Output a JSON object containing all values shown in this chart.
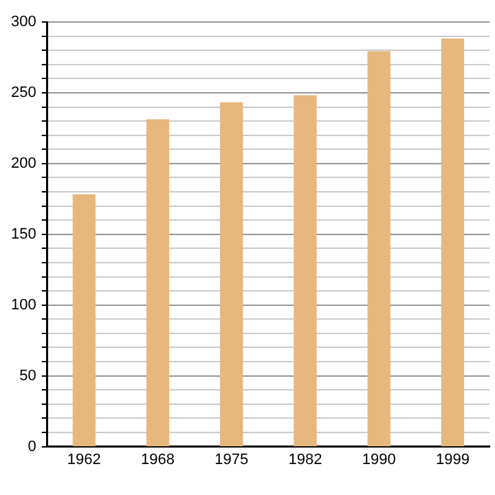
{
  "chart_data": {
    "type": "bar",
    "categories": [
      "1962",
      "1968",
      "1975",
      "1982",
      "1990",
      "1999"
    ],
    "values": [
      178,
      231,
      243,
      248,
      279,
      288
    ],
    "color": "#e6b87e",
    "ylim": [
      0,
      300
    ],
    "yticks": [
      0,
      {
        "value": 10,
        "label": null
      },
      {
        "value": 20,
        "label": null
      },
      {
        "value": 30,
        "label": null
      },
      {
        "value": 40,
        "label": null
      },
      50,
      {
        "value": 60,
        "label": null
      },
      {
        "value": 70,
        "label": null
      },
      {
        "value": 80,
        "label": null
      },
      {
        "value": 90,
        "label": null
      },
      100,
      {
        "value": 110,
        "label": null
      },
      {
        "value": 120,
        "label": null
      },
      {
        "value": 130,
        "label": null
      },
      {
        "value": 140,
        "label": null
      },
      150,
      {
        "value": 160,
        "label": null
      },
      {
        "value": 170,
        "label": null
      },
      {
        "value": 180,
        "label": null
      },
      {
        "value": 190,
        "label": null
      },
      200,
      {
        "value": 210,
        "label": null
      },
      {
        "value": 220,
        "label": null
      },
      {
        "value": 230,
        "label": null
      },
      {
        "value": 240,
        "label": null
      },
      250,
      {
        "value": 260,
        "label": null
      },
      {
        "value": 270,
        "label": null
      },
      {
        "value": 280,
        "label": null
      },
      {
        "value": 290,
        "label": null
      },
      300
    ],
    "grid": "y",
    "legend": false
  }
}
